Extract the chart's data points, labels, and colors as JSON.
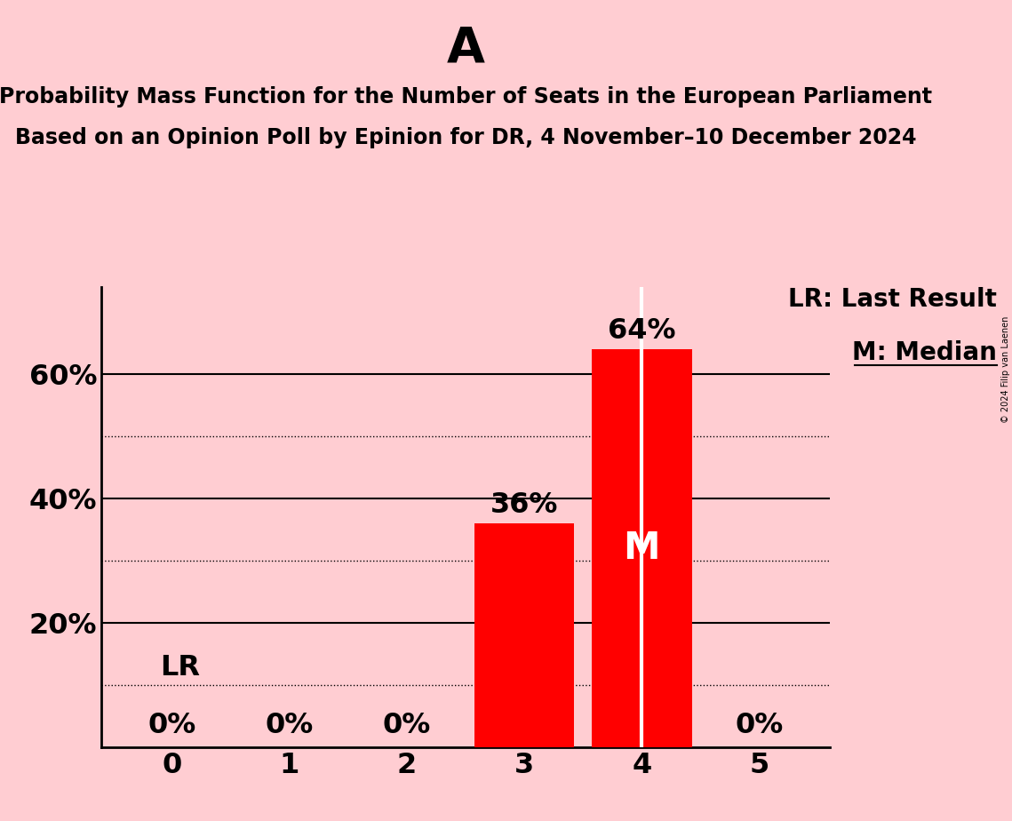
{
  "title_letter": "A",
  "subtitle_line1": "Probability Mass Function for the Number of Seats in the European Parliament",
  "subtitle_line2": "Based on an Opinion Poll by Epinion for DR, 4 November–10 December 2024",
  "copyright": "© 2024 Filip van Laenen",
  "categories": [
    0,
    1,
    2,
    3,
    4,
    5
  ],
  "values": [
    0.0,
    0.0,
    0.0,
    0.36,
    0.64,
    0.0
  ],
  "bar_color": "#ff0000",
  "background_color": "#ffcdd2",
  "median_seat": 4,
  "last_result_line_value": 0.1,
  "legend_lr": "LR: Last Result",
  "legend_m": "M: Median",
  "yticks": [
    0.0,
    0.2,
    0.4,
    0.6
  ],
  "ytick_labels": [
    "",
    "20%",
    "40%",
    "60%"
  ],
  "ylim": [
    0,
    0.74
  ],
  "solid_lines": [
    0.2,
    0.4,
    0.6
  ],
  "dotted_lines": [
    0.1,
    0.3,
    0.5
  ],
  "bar_label_positions": {
    "0": "0%",
    "1": "0%",
    "2": "0%",
    "3": "36%",
    "4": "64%",
    "5": "0%"
  },
  "median_label": "M",
  "title_fontsize": 40,
  "subtitle_fontsize": 17,
  "axis_tick_fontsize": 23,
  "bar_label_fontsize": 23,
  "legend_fontsize": 20,
  "ytick_fontsize": 23,
  "copyright_fontsize": 7
}
